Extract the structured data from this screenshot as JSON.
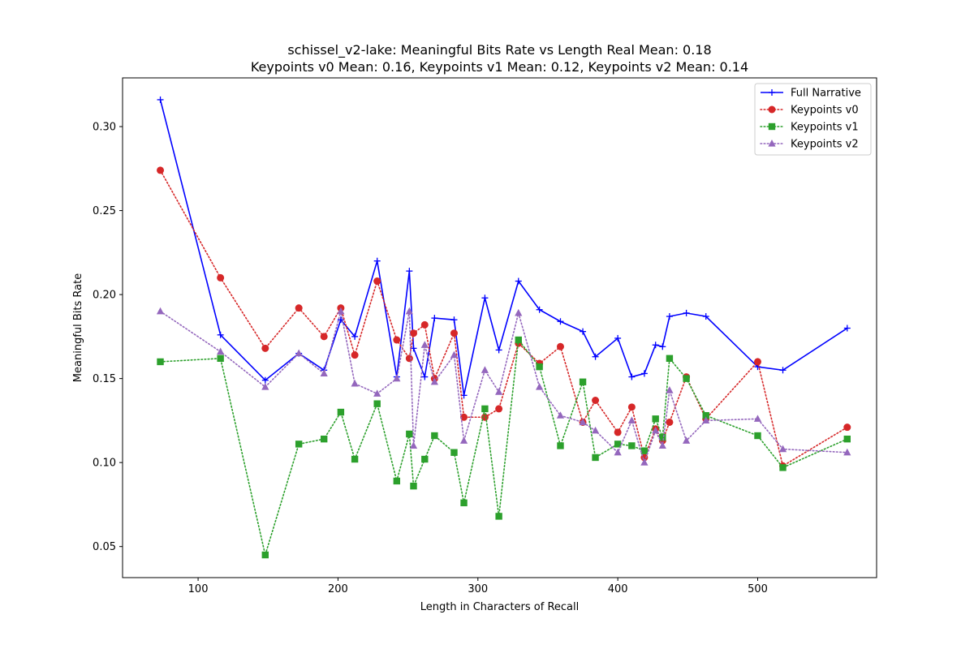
{
  "chart_data": {
    "type": "line",
    "title_lines": [
      "schissel_v2-lake: Meaningful Bits Rate vs Length Real Mean: 0.18",
      "Keypoints v0 Mean: 0.16, Keypoints v1 Mean: 0.12, Keypoints v2 Mean: 0.14"
    ],
    "xlabel": "Length in Characters of Recall",
    "ylabel": "Meaningful Bits Rate",
    "xlim": [
      46,
      585
    ],
    "ylim": [
      0.0315,
      0.329
    ],
    "x_ticks": [
      100,
      200,
      300,
      400,
      500
    ],
    "y_ticks": [
      0.05,
      0.1,
      0.15,
      0.2,
      0.25,
      0.3
    ],
    "x_tick_labels": [
      "100",
      "200",
      "300",
      "400",
      "500"
    ],
    "y_tick_labels": [
      "0.05",
      "0.10",
      "0.15",
      "0.20",
      "0.25",
      "0.30"
    ],
    "grid": false,
    "legend_position": "top-right",
    "x": [
      73,
      116,
      148,
      172,
      190,
      202,
      212,
      228,
      242,
      251,
      254,
      262,
      269,
      283,
      290,
      305,
      315,
      329,
      344,
      359,
      375,
      384,
      400,
      410,
      419,
      427,
      432,
      437,
      449,
      463,
      500,
      518,
      564
    ],
    "series": [
      {
        "name": "Full Narrative",
        "color": "#0000ff",
        "line_style": "solid",
        "marker": "plus",
        "values": [
          0.316,
          0.176,
          0.149,
          0.165,
          0.155,
          0.185,
          0.175,
          0.22,
          0.151,
          0.214,
          0.168,
          0.151,
          0.186,
          0.185,
          0.14,
          0.198,
          0.167,
          0.208,
          0.191,
          0.184,
          0.178,
          0.163,
          0.174,
          0.151,
          0.153,
          0.17,
          0.169,
          0.187,
          0.189,
          0.187,
          0.157,
          0.155,
          0.18
        ]
      },
      {
        "name": "Keypoints v0",
        "color": "#d62728",
        "line_style": "dotted",
        "marker": "circle",
        "values": [
          0.274,
          0.21,
          0.168,
          0.192,
          0.175,
          0.192,
          0.164,
          0.208,
          0.173,
          0.162,
          0.177,
          0.182,
          0.15,
          0.177,
          0.127,
          0.127,
          0.132,
          0.171,
          0.159,
          0.169,
          0.124,
          0.137,
          0.118,
          0.133,
          0.103,
          0.12,
          0.113,
          0.124,
          0.151,
          0.126,
          0.16,
          0.098,
          0.121
        ]
      },
      {
        "name": "Keypoints v1",
        "color": "#2ca02c",
        "line_style": "dotted",
        "marker": "square",
        "values": [
          0.16,
          0.162,
          0.045,
          0.111,
          0.114,
          0.13,
          0.102,
          0.135,
          0.089,
          0.117,
          0.086,
          0.102,
          0.116,
          0.106,
          0.076,
          0.132,
          0.068,
          0.173,
          0.157,
          0.11,
          0.148,
          0.103,
          0.111,
          0.11,
          0.107,
          0.126,
          0.115,
          0.162,
          0.15,
          0.128,
          0.116,
          0.097,
          0.114
        ]
      },
      {
        "name": "Keypoints v2",
        "color": "#9467bd",
        "line_style": "dotted",
        "marker": "triangle",
        "values": [
          0.19,
          0.166,
          0.145,
          0.165,
          0.153,
          0.19,
          0.147,
          0.141,
          0.15,
          0.19,
          0.11,
          0.17,
          0.148,
          0.164,
          0.113,
          0.155,
          0.142,
          0.189,
          0.145,
          0.128,
          0.124,
          0.119,
          0.106,
          0.125,
          0.1,
          0.119,
          0.11,
          0.143,
          0.113,
          0.125,
          0.126,
          0.108,
          0.106
        ]
      }
    ]
  }
}
